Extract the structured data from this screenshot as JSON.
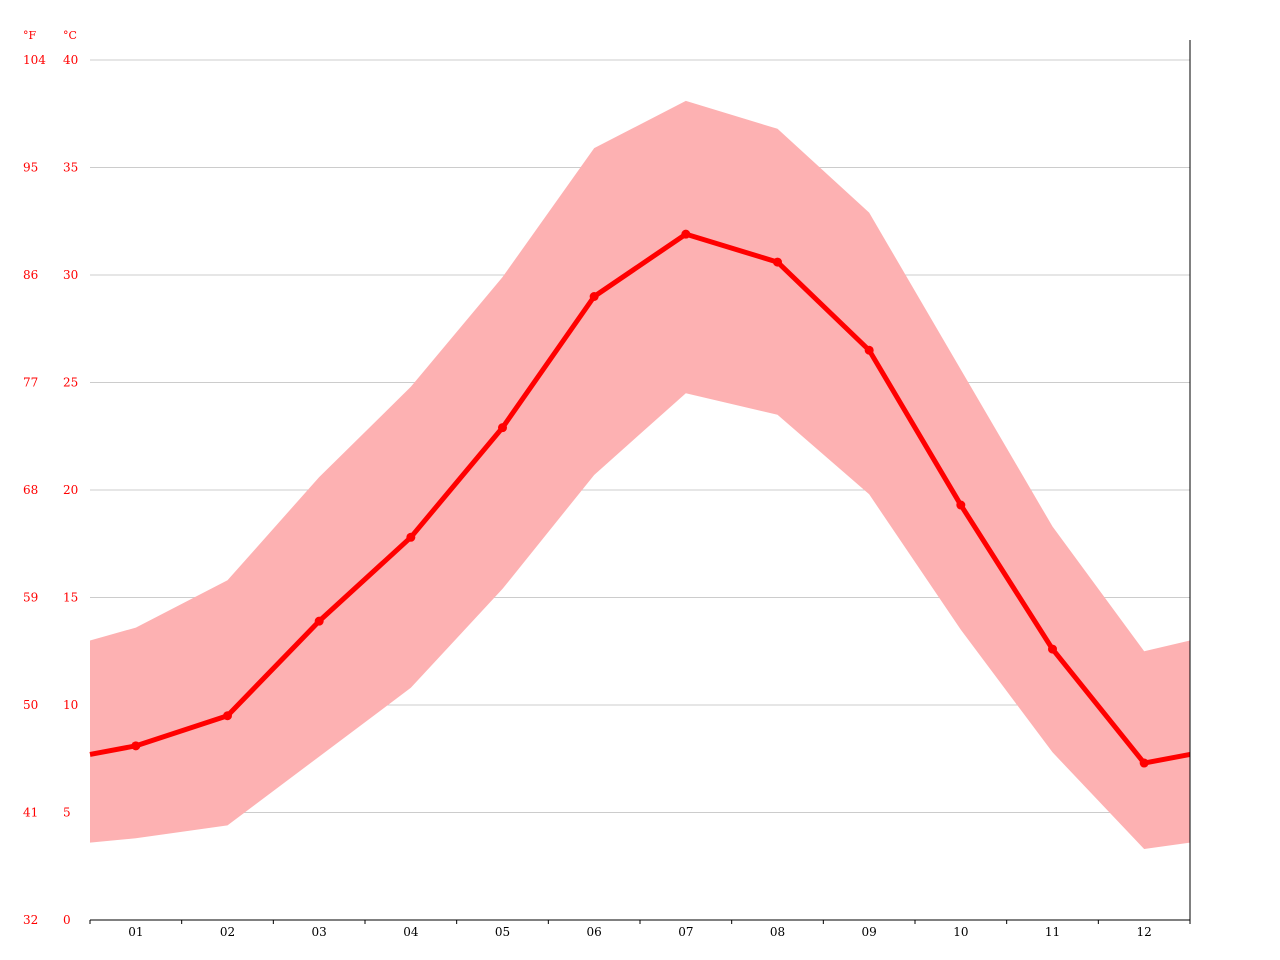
{
  "chart_data": {
    "type": "line",
    "categories": [
      "01",
      "02",
      "03",
      "04",
      "05",
      "06",
      "07",
      "08",
      "09",
      "10",
      "11",
      "12"
    ],
    "series": [
      {
        "values": [
          8.1,
          9.5,
          13.9,
          17.8,
          22.9,
          29.0,
          31.9,
          30.6,
          26.5,
          19.3,
          12.6,
          7.3
        ]
      }
    ],
    "band": {
      "upper": [
        13.6,
        15.8,
        20.6,
        24.8,
        29.9,
        35.9,
        38.1,
        36.8,
        32.9,
        25.6,
        18.3,
        12.5
      ],
      "lower": [
        3.8,
        4.4,
        7.6,
        10.8,
        15.4,
        20.7,
        24.5,
        23.5,
        19.8,
        13.5,
        7.8,
        3.3
      ]
    },
    "edge_values": {
      "line_start": 7.7,
      "line_end": 7.7,
      "upper_start": 13.0,
      "upper_end": 13.0,
      "lower_start": 3.6,
      "lower_end": 3.6
    },
    "y_unit_left": "°F",
    "y_unit_right": "°C",
    "ylim": [
      0,
      40
    ],
    "yticks_c": [
      "0",
      "5",
      "10",
      "15",
      "20",
      "25",
      "30",
      "35",
      "40"
    ],
    "yticks_f": [
      "32",
      "41",
      "50",
      "59",
      "68",
      "77",
      "86",
      "95",
      "104"
    ],
    "grid": true,
    "colors": {
      "line": "#ff0000",
      "band": "#fdb1b2",
      "grid": "#cccccc",
      "axis_text": "#ff0000",
      "x_text": "#000000"
    }
  }
}
